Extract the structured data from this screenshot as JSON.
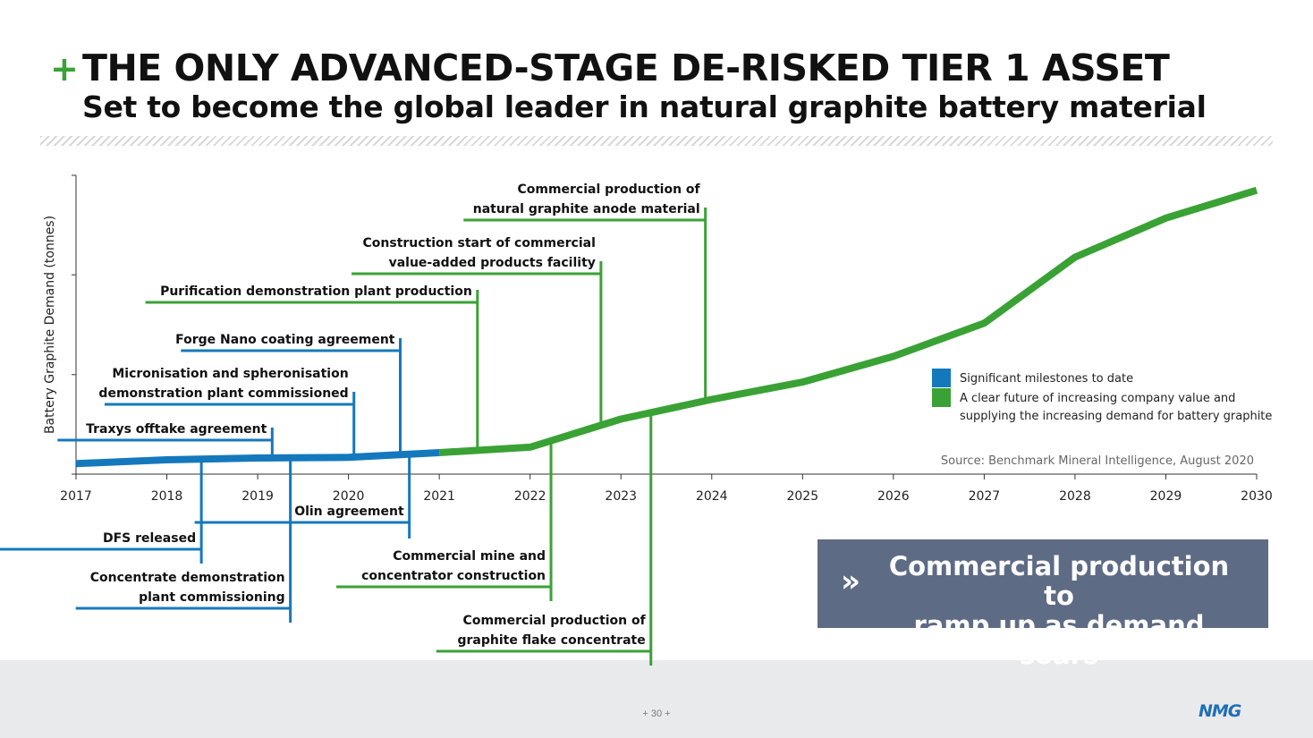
{
  "header": {
    "plus": "+",
    "title": "THE ONLY ADVANCED-STAGE DE-RISKED TIER 1 ASSET",
    "subtitle": "Set to become the global leader in natural graphite battery material"
  },
  "colors": {
    "milestone_blue": "#1478bd",
    "future_green": "#3aa235",
    "callout_bg": "#5e6b85"
  },
  "chart_data": {
    "type": "line",
    "title": "",
    "xlabel": "",
    "ylabel": "Battery Graphite Demand (tonnes)",
    "x_ticks": [
      "2017",
      "2018",
      "2019",
      "2020",
      "2021",
      "2022",
      "2023",
      "2024",
      "2025",
      "2026",
      "2027",
      "2028",
      "2029",
      "2030"
    ],
    "x_range": [
      2017,
      2030
    ],
    "y_range": [
      0,
      100
    ],
    "y_axis_ticks": [
      0,
      33.3,
      66.7,
      100
    ],
    "y_tick_labels_shown": false,
    "grid": false,
    "series": [
      {
        "name": "Significant milestones to date",
        "color": "#1478bd",
        "points": [
          [
            2017,
            3.5
          ],
          [
            2018,
            4.8
          ],
          [
            2019,
            5.4
          ],
          [
            2020,
            5.6
          ],
          [
            2021,
            7.2
          ]
        ]
      },
      {
        "name": "A clear future of increasing company value and supplying the increasing demand for battery graphite",
        "color": "#3aa235",
        "points": [
          [
            2021,
            7.2
          ],
          [
            2022,
            9.0
          ],
          [
            2023,
            18.4
          ],
          [
            2024,
            25.0
          ],
          [
            2025,
            30.8
          ],
          [
            2026,
            39.4
          ],
          [
            2027,
            50.5
          ],
          [
            2028,
            72.6
          ],
          [
            2029,
            85.7
          ],
          [
            2030,
            95.0
          ]
        ]
      }
    ],
    "legend": {
      "placement": "right",
      "items": [
        {
          "color": "#1478bd",
          "text": "Significant milestones to date"
        },
        {
          "color": "#3aa235",
          "text": "A clear future of increasing company value and\nsupplying the increasing demand for battery graphite"
        }
      ]
    },
    "source": "Source: Benchmark Mineral Intelligence, August 2020",
    "annotations": [
      {
        "label": "Traxys offtake agreement",
        "x": 2019.16,
        "color": "blue",
        "side": "above"
      },
      {
        "label": "Micronisation and spheronisation\ndemonstration plant commissioned",
        "x": 2020.06,
        "color": "blue",
        "side": "above"
      },
      {
        "label": "Forge Nano coating agreement",
        "x": 2020.57,
        "color": "blue",
        "side": "above"
      },
      {
        "label": "Purification demonstration plant production",
        "x": 2021.42,
        "color": "green",
        "side": "above"
      },
      {
        "label": "Construction start of commercial\nvalue-added products facility",
        "x": 2022.78,
        "color": "green",
        "side": "above"
      },
      {
        "label": "Commercial production of\nnatural graphite anode material",
        "x": 2023.93,
        "color": "green",
        "side": "above"
      },
      {
        "label": "DFS released",
        "x": 2018.38,
        "color": "blue",
        "side": "below"
      },
      {
        "label": "Concentrate demonstration\nplant commissioning",
        "x": 2019.36,
        "color": "blue",
        "side": "below"
      },
      {
        "label": "Olin agreement",
        "x": 2020.67,
        "color": "blue",
        "side": "below"
      },
      {
        "label": "Commercial mine and\nconcentrator construction",
        "x": 2022.23,
        "color": "green",
        "side": "below"
      },
      {
        "label": "Commercial production of\ngraphite flake concentrate",
        "x": 2023.33,
        "color": "green",
        "side": "below"
      }
    ]
  },
  "callout": {
    "chevron": "»",
    "text": "Commercial production to\nramp up as demand soars"
  },
  "footer": {
    "page_number": "+ 30 +",
    "logo_text": "NMG"
  }
}
